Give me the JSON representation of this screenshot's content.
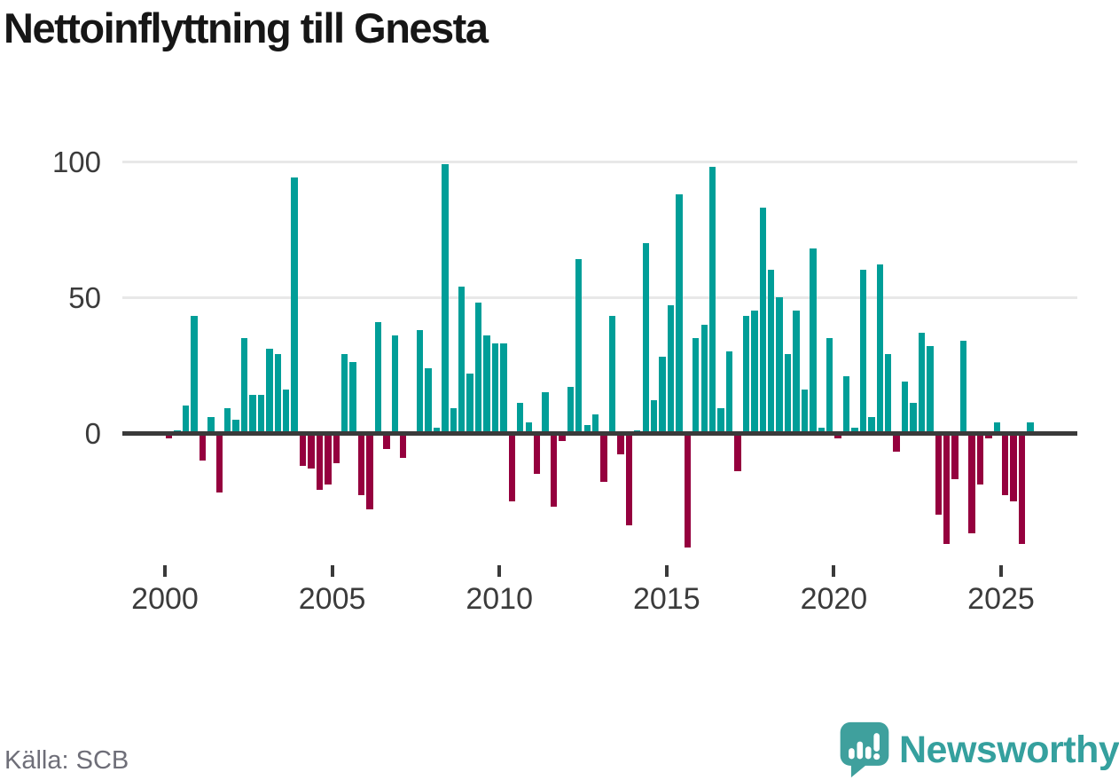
{
  "title": "Nettoinflyttning till Gnesta",
  "source_label": "Källa: SCB",
  "branding": {
    "wordmark": "Newsworthy",
    "icon": "newsworthy-speech-bubble-chart-icon",
    "icon_color": "#3fa09d",
    "wordmark_color": "#35a09e"
  },
  "chart_data": {
    "type": "bar",
    "title": "Nettoinflyttning till Gnesta",
    "frequency": "quarterly",
    "start": "2000Q1",
    "end": "2025Q4",
    "grid": "horizontal",
    "yticks": [
      0,
      50,
      100
    ],
    "ylim": [
      -45,
      105
    ],
    "x_tick_years": [
      2000,
      2005,
      2010,
      2015,
      2020,
      2025
    ],
    "x_tick_labels": [
      "2000",
      "2005",
      "2010",
      "2015",
      "2020",
      "2025"
    ],
    "positive_color": "#009e98",
    "negative_color": "#95003e",
    "series": [
      {
        "year": 2000,
        "quarters": [
          -2,
          1,
          10,
          43
        ]
      },
      {
        "year": 2001,
        "quarters": [
          -10,
          6,
          -22,
          9
        ]
      },
      {
        "year": 2002,
        "quarters": [
          5,
          35,
          14,
          14
        ]
      },
      {
        "year": 2003,
        "quarters": [
          31,
          29,
          16,
          94
        ]
      },
      {
        "year": 2004,
        "quarters": [
          -12,
          -13,
          -21,
          -19
        ]
      },
      {
        "year": 2005,
        "quarters": [
          -11,
          29,
          26,
          -23
        ]
      },
      {
        "year": 2006,
        "quarters": [
          -28,
          41,
          -6,
          36
        ]
      },
      {
        "year": 2007,
        "quarters": [
          -9,
          0,
          38,
          24
        ]
      },
      {
        "year": 2008,
        "quarters": [
          2,
          99,
          9,
          54
        ]
      },
      {
        "year": 2009,
        "quarters": [
          22,
          48,
          36,
          33
        ]
      },
      {
        "year": 2010,
        "quarters": [
          33,
          -25,
          11,
          4
        ]
      },
      {
        "year": 2011,
        "quarters": [
          -15,
          15,
          -27,
          -3
        ]
      },
      {
        "year": 2012,
        "quarters": [
          17,
          64,
          3,
          7
        ]
      },
      {
        "year": 2013,
        "quarters": [
          -18,
          43,
          -8,
          -34
        ]
      },
      {
        "year": 2014,
        "quarters": [
          1,
          70,
          12,
          28
        ]
      },
      {
        "year": 2015,
        "quarters": [
          47,
          88,
          -42,
          35
        ]
      },
      {
        "year": 2016,
        "quarters": [
          40,
          98,
          9,
          30
        ]
      },
      {
        "year": 2017,
        "quarters": [
          -14,
          43,
          45,
          83
        ]
      },
      {
        "year": 2018,
        "quarters": [
          60,
          50,
          29,
          45
        ]
      },
      {
        "year": 2019,
        "quarters": [
          16,
          68,
          2,
          35
        ]
      },
      {
        "year": 2020,
        "quarters": [
          -2,
          21,
          2,
          60
        ]
      },
      {
        "year": 2021,
        "quarters": [
          6,
          62,
          29,
          -7
        ]
      },
      {
        "year": 2022,
        "quarters": [
          19,
          11,
          37,
          32
        ]
      },
      {
        "year": 2023,
        "quarters": [
          -30,
          -41,
          -17,
          34
        ]
      },
      {
        "year": 2024,
        "quarters": [
          -37,
          -19,
          -2,
          4
        ]
      },
      {
        "year": 2025,
        "quarters": [
          -23,
          -25,
          -41,
          4
        ]
      }
    ]
  }
}
